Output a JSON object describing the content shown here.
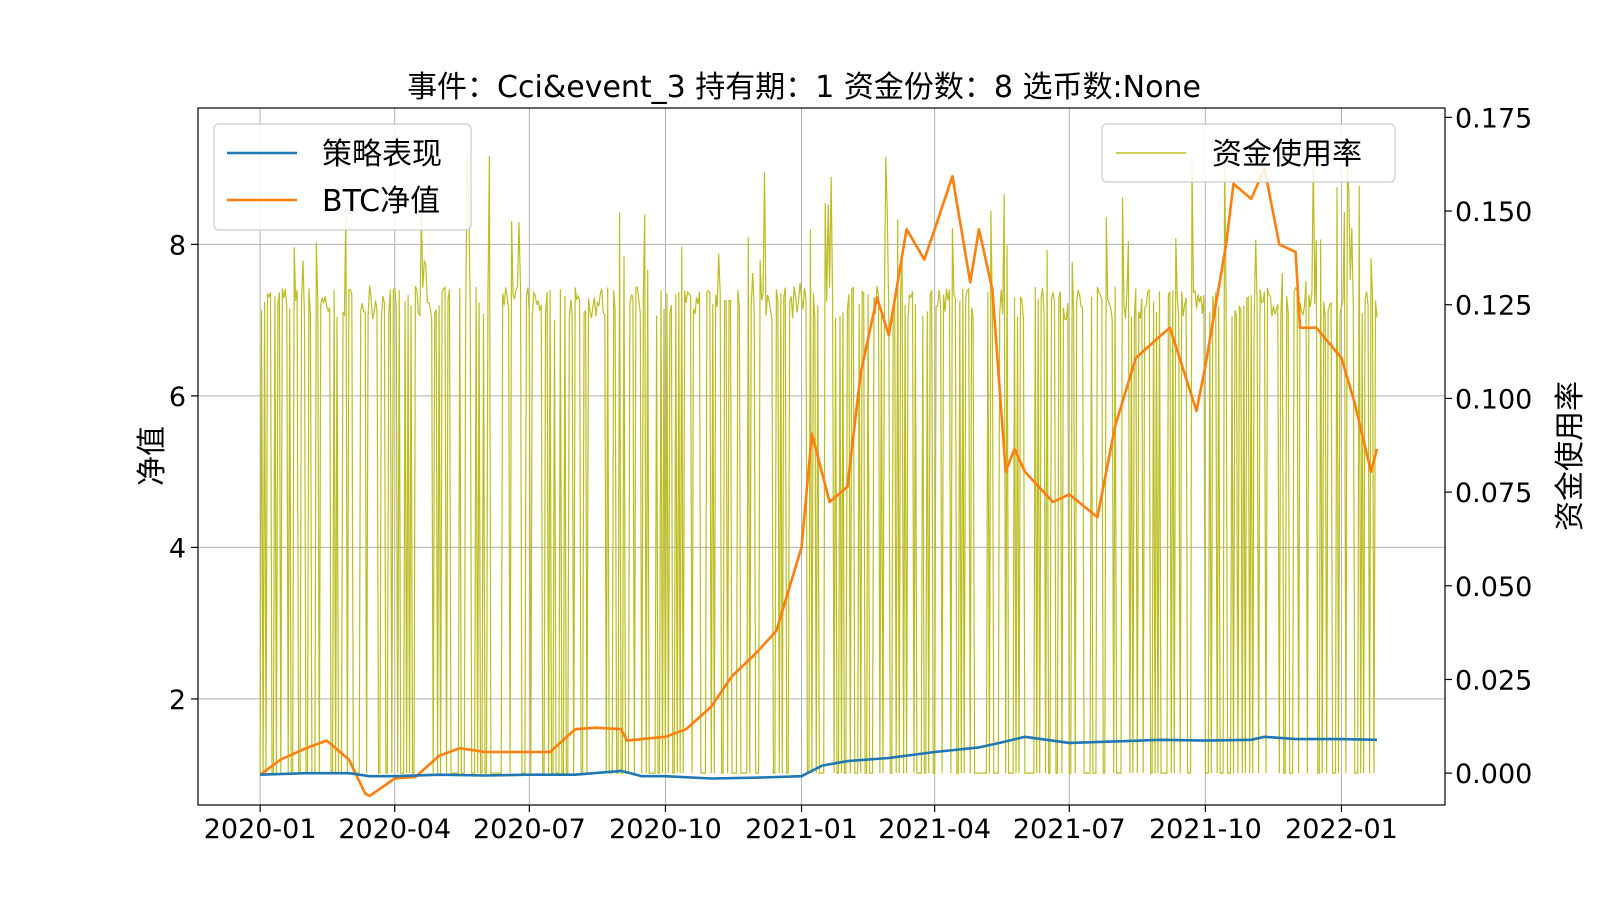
{
  "chart_data": {
    "type": "line",
    "title": "事件：Cci&event_3 持有期：1 资金份数：8 选币数:None",
    "ylabel": "净值",
    "y2label": "资金使用率",
    "x_ticks": [
      "2020-01",
      "2020-04",
      "2020-07",
      "2020-10",
      "2021-01",
      "2021-04",
      "2021-07",
      "2021-10",
      "2022-01"
    ],
    "y_ticks": [
      "2",
      "4",
      "6",
      "8"
    ],
    "y2_ticks": [
      "0.000",
      "0.025",
      "0.050",
      "0.075",
      "0.100",
      "0.125",
      "0.150",
      "0.175"
    ],
    "xlim": [
      "2019-11-20",
      "2022-03-12"
    ],
    "ylim": [
      0.6,
      9.8
    ],
    "y2lim": [
      -0.0085,
      0.1775
    ],
    "grid": true,
    "legend_left": [
      "策略表现",
      "BTC净值"
    ],
    "legend_right": [
      "资金使用率"
    ],
    "colors": {
      "strategy": "#1f77b4",
      "btc": "#ff7f0e",
      "usage": "#bcbd22",
      "grid": "#b0b0b0"
    },
    "series": [
      {
        "name": "策略表现",
        "axis": "left",
        "x": [
          "2020-01-01",
          "2020-02-01",
          "2020-03-01",
          "2020-03-15",
          "2020-04-01",
          "2020-05-01",
          "2020-06-01",
          "2020-07-01",
          "2020-08-01",
          "2020-09-01",
          "2020-09-15",
          "2020-10-01",
          "2020-11-01",
          "2020-12-01",
          "2021-01-01",
          "2021-01-15",
          "2021-02-01",
          "2021-03-01",
          "2021-04-01",
          "2021-05-01",
          "2021-05-15",
          "2021-06-01",
          "2021-07-01",
          "2021-08-01",
          "2021-09-01",
          "2021-10-01",
          "2021-11-01",
          "2021-11-10",
          "2021-12-01",
          "2022-01-01",
          "2022-01-25"
        ],
        "values": [
          1.0,
          1.02,
          1.02,
          0.98,
          0.98,
          1.0,
          0.99,
          1.0,
          1.0,
          1.05,
          0.98,
          0.98,
          0.95,
          0.96,
          0.98,
          1.12,
          1.18,
          1.22,
          1.3,
          1.36,
          1.42,
          1.5,
          1.42,
          1.44,
          1.46,
          1.45,
          1.46,
          1.5,
          1.47,
          1.47,
          1.46
        ]
      },
      {
        "name": "BTC净值",
        "axis": "left",
        "x": [
          "2020-01-01",
          "2020-01-15",
          "2020-02-01",
          "2020-02-15",
          "2020-03-01",
          "2020-03-12",
          "2020-03-15",
          "2020-04-01",
          "2020-04-15",
          "2020-05-01",
          "2020-05-15",
          "2020-06-01",
          "2020-06-15",
          "2020-07-01",
          "2020-07-15",
          "2020-08-01",
          "2020-08-15",
          "2020-09-01",
          "2020-09-05",
          "2020-09-20",
          "2020-10-01",
          "2020-10-15",
          "2020-11-01",
          "2020-11-15",
          "2020-12-01",
          "2020-12-15",
          "2021-01-01",
          "2021-01-08",
          "2021-01-20",
          "2021-02-01",
          "2021-02-10",
          "2021-02-21",
          "2021-03-01",
          "2021-03-13",
          "2021-03-25",
          "2021-04-01",
          "2021-04-13",
          "2021-04-25",
          "2021-05-01",
          "2021-05-10",
          "2021-05-19",
          "2021-05-25",
          "2021-06-01",
          "2021-06-20",
          "2021-07-01",
          "2021-07-20",
          "2021-08-01",
          "2021-08-15",
          "2021-09-01",
          "2021-09-07",
          "2021-09-25",
          "2021-10-01",
          "2021-10-15",
          "2021-10-20",
          "2021-11-01",
          "2021-11-10",
          "2021-11-20",
          "2021-12-01",
          "2021-12-04",
          "2021-12-15",
          "2022-01-01",
          "2022-01-10",
          "2022-01-21",
          "2022-01-25"
        ],
        "values": [
          1.0,
          1.2,
          1.35,
          1.45,
          1.2,
          0.75,
          0.72,
          0.95,
          0.97,
          1.25,
          1.35,
          1.3,
          1.3,
          1.3,
          1.3,
          1.6,
          1.62,
          1.6,
          1.45,
          1.48,
          1.5,
          1.6,
          1.9,
          2.3,
          2.6,
          2.9,
          4.0,
          5.5,
          4.6,
          4.8,
          6.3,
          7.3,
          6.8,
          8.2,
          7.8,
          8.2,
          8.9,
          7.5,
          8.2,
          7.4,
          5.0,
          5.3,
          5.0,
          4.6,
          4.7,
          4.4,
          5.6,
          6.5,
          6.8,
          6.9,
          5.8,
          6.4,
          8.0,
          8.8,
          8.6,
          9.0,
          8.0,
          7.9,
          6.9,
          6.9,
          6.5,
          5.9,
          5.0,
          5.3
        ]
      },
      {
        "name": "资金使用率",
        "axis": "right",
        "x_start": "2020-01-01",
        "x_end": "2022-01-25",
        "level": 0.125,
        "min": 0.0,
        "max": 0.17
      }
    ]
  }
}
